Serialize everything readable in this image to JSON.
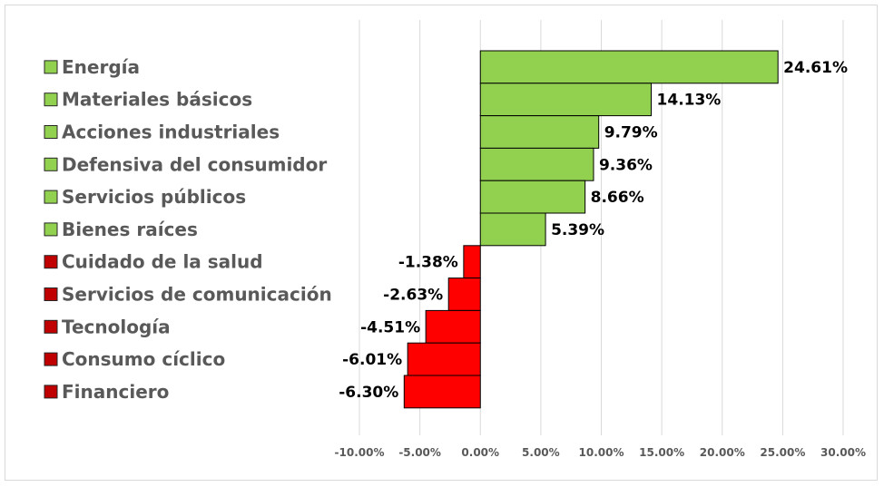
{
  "chart_data": {
    "type": "bar",
    "orientation": "horizontal",
    "title": "",
    "xlabel": "",
    "ylabel": "",
    "xlim": [
      -10,
      30
    ],
    "grid": true,
    "legend": "left",
    "positive_color": "#92d050",
    "negative_color": "#ff0000",
    "categories": [
      "Energía",
      "Materiales básicos",
      "Acciones industriales",
      "Defensiva del consumidor",
      "Servicios públicos",
      "Bienes raíces",
      "Cuidado de la salud",
      "Servicios de comunicación",
      "Tecnología",
      "Consumo cíclico",
      "Financiero"
    ],
    "values": [
      24.61,
      14.13,
      9.79,
      9.36,
      8.66,
      5.39,
      -1.38,
      -2.63,
      -4.51,
      -6.01,
      -6.3
    ],
    "value_labels": [
      "24.61%",
      "14.13%",
      "9.79%",
      "9.36%",
      "8.66%",
      "5.39%",
      "-1.38%",
      "-2.63%",
      "-4.51%",
      "-6.01%",
      "-6.30%"
    ],
    "ticks": [
      -10,
      -5,
      0,
      5,
      10,
      15,
      20,
      25,
      30
    ],
    "tick_labels": [
      "-10.00%",
      "-5.00%",
      "0.00%",
      "5.00%",
      "10.00%",
      "15.00%",
      "20.00%",
      "25.00%",
      "30.00%"
    ]
  }
}
